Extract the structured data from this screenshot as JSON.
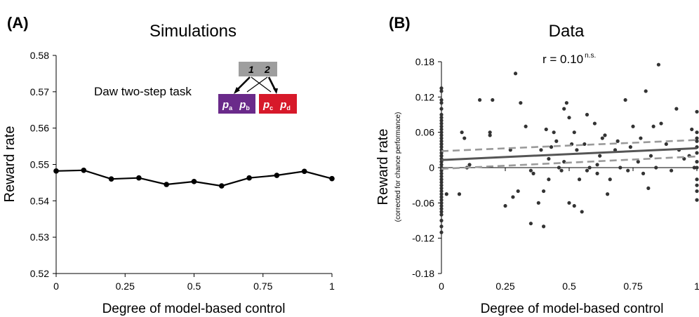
{
  "chart_data": [
    {
      "panel_label": "(A)",
      "type": "line",
      "title": "Simulations",
      "xlabel": "Degree of model-based control",
      "ylabel": "Reward rate",
      "xlim": [
        0,
        1
      ],
      "ylim": [
        0.52,
        0.58
      ],
      "x_ticks": [
        "0",
        "0.25",
        "0.5",
        "0.75",
        "1"
      ],
      "y_ticks": [
        "0.52",
        "0.53",
        "0.54",
        "0.55",
        "0.56",
        "0.57",
        "0.58"
      ],
      "grid": false,
      "x": [
        0,
        0.1,
        0.2,
        0.3,
        0.4,
        0.5,
        0.6,
        0.7,
        0.8,
        0.9,
        1.0
      ],
      "y": [
        0.5482,
        0.5484,
        0.546,
        0.5463,
        0.5445,
        0.5453,
        0.5441,
        0.5463,
        0.547,
        0.5481,
        0.5461
      ],
      "line_color": "#000000",
      "inset": {
        "label": "Daw two-step task",
        "top_state_labels": [
          "1",
          "2"
        ],
        "left_state_labels": [
          "p",
          "p"
        ],
        "left_state_subscripts": [
          "a",
          "b"
        ],
        "right_state_labels": [
          "p",
          "p"
        ],
        "right_state_subscripts": [
          "c",
          "d"
        ],
        "top_color": "#9e9e9e",
        "left_color": "#6a2a8a",
        "right_color": "#d7192a"
      }
    },
    {
      "panel_label": "(B)",
      "type": "scatter",
      "title": "Data",
      "annotation_main": "r = 0.10",
      "annotation_sup": "n.s.",
      "xlabel": "Degree of model-based control",
      "ylabel": "Reward rate",
      "ylabel_sub": "(corrected for chance performance)",
      "xlim": [
        0,
        1
      ],
      "ylim": [
        -0.18,
        0.18
      ],
      "x_ticks": [
        "0",
        "0.25",
        "0.5",
        "0.75",
        "1"
      ],
      "y_ticks": [
        "-0.18",
        "-0.12",
        "-0.06",
        "0",
        "0.06",
        "0.12",
        "0.18"
      ],
      "grid": false,
      "point_color": "#333333",
      "regression": {
        "intercept": 0.013,
        "slope": 0.02,
        "ci_upper": [
          0.028,
          0.047
        ],
        "ci_lower": [
          -0.002,
          0.019
        ],
        "line_color": "#555555",
        "ci_color": "#9a9a9a"
      },
      "points_x": [
        0,
        0,
        0,
        0,
        0,
        0,
        0,
        0,
        0,
        0,
        0,
        0,
        0,
        0,
        0,
        0,
        0,
        0,
        0,
        0,
        0,
        0,
        0,
        0,
        0,
        0,
        0,
        0,
        0,
        0,
        0,
        0,
        0,
        0,
        0,
        0,
        0,
        0,
        0,
        0,
        0,
        0,
        0,
        0,
        0,
        0,
        0.02,
        0.07,
        0.08,
        0.1,
        0.09,
        0.11,
        0.15,
        0.19,
        0.2,
        0.19,
        0.27,
        0.28,
        0.29,
        0.3,
        0.31,
        0.33,
        0.35,
        0.36,
        0.38,
        0.39,
        0.4,
        0.4,
        0.41,
        0.42,
        0.42,
        0.43,
        0.45,
        0.46,
        0.47,
        0.48,
        0.48,
        0.49,
        0.5,
        0.51,
        0.52,
        0.52,
        0.53,
        0.54,
        0.55,
        0.56,
        0.57,
        0.58,
        0.6,
        0.61,
        0.61,
        0.62,
        0.63,
        0.65,
        0.66,
        0.68,
        0.69,
        0.7,
        0.72,
        0.73,
        0.75,
        0.77,
        0.78,
        0.79,
        0.8,
        0.81,
        0.83,
        0.84,
        0.85,
        0.86,
        0.88,
        0.9,
        0.92,
        0.93,
        0.95,
        0.97,
        0.98,
        0.99,
        1,
        1,
        1,
        1,
        1,
        1,
        1,
        1,
        1,
        1,
        1,
        1,
        0.5,
        0.25,
        0.35,
        0.57,
        0.82,
        0.74,
        0.64,
        0.44
      ],
      "points_y": [
        0.135,
        0.13,
        0.115,
        0.11,
        0.1,
        0.09,
        0.085,
        0.08,
        0.075,
        0.07,
        0.065,
        0.06,
        0.055,
        0.05,
        0.045,
        0.04,
        0.035,
        0.03,
        0.025,
        0.02,
        0.015,
        0.01,
        0.005,
        0,
        -0.005,
        -0.01,
        -0.015,
        -0.02,
        -0.025,
        -0.03,
        -0.035,
        -0.04,
        -0.045,
        -0.05,
        -0.055,
        -0.06,
        -0.065,
        -0.07,
        -0.075,
        -0.08,
        -0.09,
        -0.1,
        -0.11,
        0.02,
        0.04,
        -0.02,
        -0.045,
        -0.045,
        0.06,
        0.0,
        0.05,
        0.005,
        0.115,
        0.06,
        0.115,
        0.055,
        0.03,
        -0.05,
        0.16,
        -0.04,
        0.11,
        0.07,
        -0.095,
        -0.01,
        -0.06,
        0.03,
        -0.1,
        -0.04,
        0.065,
        0.015,
        -0.02,
        0.035,
        0.045,
        0.0,
        -0.005,
        0.1,
        0.01,
        0.11,
        0.085,
        0.04,
        -0.065,
        0.06,
        0.03,
        -0.02,
        -0.075,
        0.04,
        0.09,
        0.0,
        0.075,
        0.005,
        -0.01,
        0.02,
        0.05,
        -0.045,
        -0.02,
        0.03,
        0.045,
        0.0,
        0.115,
        -0.005,
        0.07,
        0.01,
        0.05,
        -0.01,
        0.13,
        -0.035,
        0.07,
        0.0,
        0.175,
        0.075,
        0.04,
        -0.005,
        0.1,
        0.03,
        0.015,
        0.02,
        0.065,
        0.0,
        -0.03,
        0.095,
        0.06,
        0.05,
        0.045,
        0.035,
        0.025,
        0.01,
        0.0,
        -0.02,
        -0.04,
        -0.055,
        -0.06,
        -0.065,
        -0.005,
        -0.005,
        0.02,
        0.035,
        0.055,
        0.06,
        0.12,
        0.09
      ]
    }
  ]
}
